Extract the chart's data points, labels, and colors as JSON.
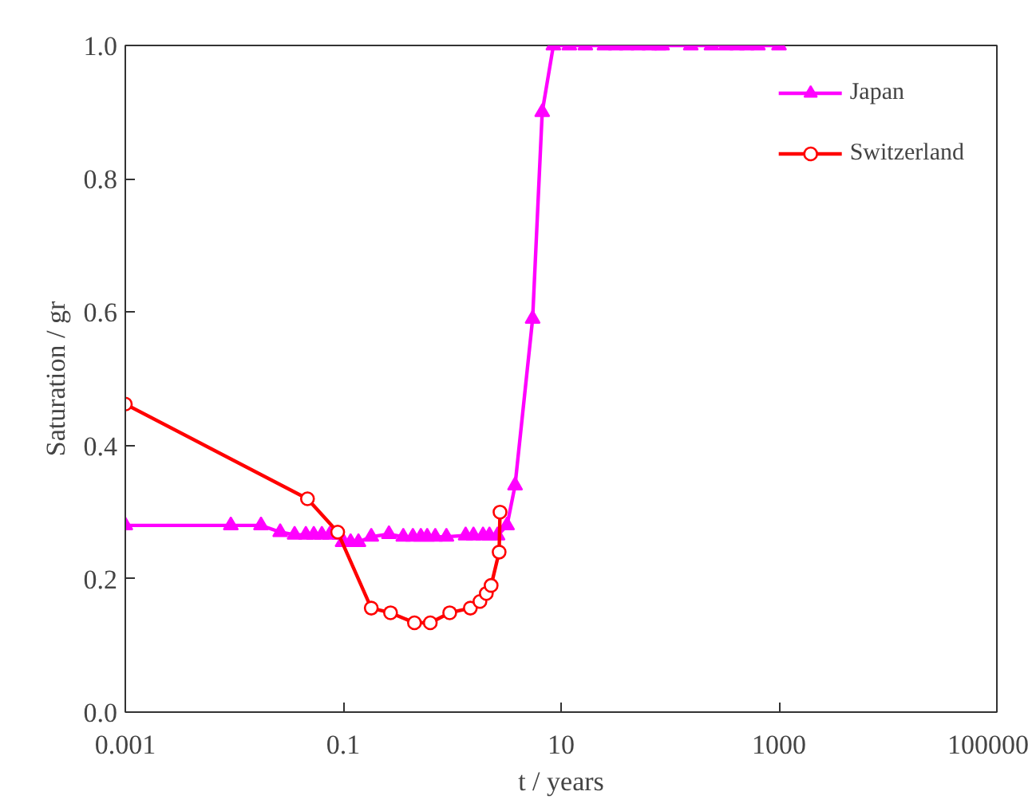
{
  "chart_data": {
    "type": "line",
    "xlabel": "t / years",
    "ylabel": "Saturation / gr",
    "log": "x",
    "xlim": [
      0.001,
      100000
    ],
    "ylim": [
      0,
      1.0
    ],
    "xticks": [
      0.001,
      0.1,
      10,
      1000,
      100000
    ],
    "yticks": [
      {
        "value": 0,
        "label": "0.0"
      },
      {
        "value": 0.2,
        "label": "0.2"
      },
      {
        "value": 0.4,
        "label": "0.4"
      },
      {
        "value": 0.6,
        "label": "0.6"
      },
      {
        "value": 0.8,
        "label": "0.8"
      },
      {
        "value": 1.0,
        "label": "1.0"
      }
    ],
    "grid": false,
    "legend": "top right",
    "series": [
      {
        "name": "Japan",
        "color": "#ff00ff",
        "marker": "triangle",
        "x": [
          0.001,
          0.0093,
          0.0176,
          0.0264,
          0.0358,
          0.0454,
          0.0537,
          0.0637,
          0.0753,
          0.0922,
          0.0987,
          0.117,
          0.138,
          0.181,
          0.263,
          0.356,
          0.436,
          0.516,
          0.59,
          0.7,
          0.886,
          1.33,
          1.57,
          1.92,
          2.2,
          2.61,
          3.19,
          3.78,
          5.48,
          6.71,
          8.5,
          11.9,
          16.7,
          25,
          31.7,
          40,
          51,
          64.5,
          79,
          84.5,
          155,
          240,
          326,
          413,
          506,
          640,
          1000
        ],
        "values": [
          0.28,
          0.28,
          0.28,
          0.27,
          0.266,
          0.266,
          0.266,
          0.266,
          0.266,
          0.266,
          0.255,
          0.255,
          0.255,
          0.263,
          0.267,
          0.263,
          0.263,
          0.263,
          0.263,
          0.263,
          0.263,
          0.265,
          0.265,
          0.265,
          0.265,
          0.265,
          0.28,
          0.34,
          0.59,
          0.9,
          1.0,
          1.0,
          1.0,
          1.0,
          1.0,
          1.0,
          1.0,
          1.0,
          1.0,
          1.0,
          1.0,
          1.0,
          1.0,
          1.0,
          1.0,
          1.0,
          1.0
        ]
      },
      {
        "name": "Switzerland",
        "color": "#ff0000",
        "marker": "circle",
        "x": [
          0.001,
          0.047,
          0.089,
          0.181,
          0.272,
          0.451,
          0.63,
          0.95,
          1.47,
          1.8,
          2.06,
          2.28,
          2.7,
          2.75
        ],
        "values": [
          0.462,
          0.32,
          0.27,
          0.156,
          0.149,
          0.134,
          0.134,
          0.149,
          0.156,
          0.166,
          0.178,
          0.19,
          0.24,
          0.3
        ]
      }
    ]
  }
}
